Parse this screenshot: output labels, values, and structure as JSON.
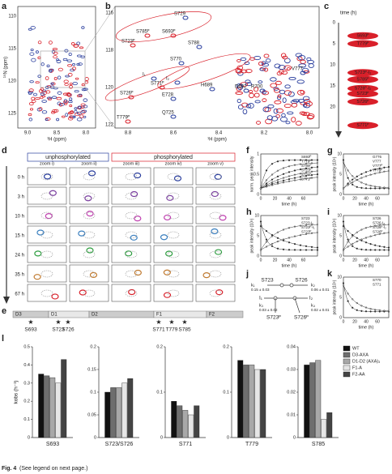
{
  "panel_labels": [
    "a",
    "b",
    "c",
    "d",
    "e",
    "f",
    "g",
    "h",
    "i",
    "j",
    "k",
    "l"
  ],
  "a": {
    "yticks": [
      "110",
      "115",
      "120",
      "125"
    ],
    "xticks": [
      "9.0",
      "8.5",
      "8.0"
    ],
    "ylabel": "¹⁵N (ppm)",
    "xlabel": "¹H (ppm)"
  },
  "b": {
    "yticks": [
      "116",
      "118",
      "120",
      "122"
    ],
    "xticks": [
      "8.8",
      "8.6",
      "8.4",
      "8.2",
      "8.0"
    ],
    "xlabel": "¹H (ppm)",
    "peaks": [
      "S729",
      "S785ᴾ",
      "S693ᴾ",
      "S723ᴾ",
      "S788",
      "S770",
      "H689",
      "D692",
      "R700",
      "V777",
      "E728",
      "S771ᴾ",
      "S726ᴾ",
      "Q725",
      "T779ᴾ",
      "I₁",
      "I₂"
    ]
  },
  "c": {
    "label": "time (h)",
    "ticks": [
      "0",
      "5",
      "10",
      "15",
      "20"
    ],
    "events": [
      "S693ᴾ",
      "T779ᴾ",
      "S723ᴾ-I₁",
      "S785ᴾ",
      "S726ᴾ-I₂",
      "S723ᴾ",
      "S726ᴾ",
      "S771ᴾ"
    ]
  },
  "d": {
    "groups": [
      "unphosphorylated",
      "phosphorylated"
    ],
    "zooms": [
      "zoom i)",
      "zoom ii)",
      "zoom iii)",
      "zoom iv)",
      "zoom v)"
    ],
    "times": [
      "0 h",
      "3 h",
      "10 h",
      "15 h",
      "24 h",
      "35 h",
      "67 h"
    ]
  },
  "e": {
    "domains": [
      "D3",
      "D1",
      "D2",
      "F1",
      "F2"
    ],
    "sites": [
      "S693",
      "S723",
      "S726",
      "S771",
      "T779",
      "S785"
    ]
  },
  "f": {
    "ylabel": "norm. peak intensity",
    "yticks": [
      "0",
      "0.5",
      "1"
    ],
    "xticks": [
      "0",
      "20",
      "40",
      "60"
    ],
    "xlabel": "time (h)",
    "legend": [
      "S693ᴾ",
      "T779ᴾ",
      "S785ᴾ",
      "S723ᴾ",
      "S726ᴾ",
      "S771ᴾ"
    ]
  },
  "g": {
    "ylabel": "peak intensity (10⁵)",
    "yticks": [
      "0",
      "5",
      "10"
    ],
    "xticks": [
      "0",
      "20",
      "40",
      "60"
    ],
    "xlabel": "time (h)",
    "legend": [
      "G776",
      "V777",
      "V777ᴾ",
      "T779ᴾ"
    ]
  },
  "h": {
    "ylabel": "peak intensity (10⁵)",
    "yticks": [
      "0",
      "5",
      "10"
    ],
    "xticks": [
      "0",
      "20",
      "40",
      "60"
    ],
    "xlabel": "time (h)",
    "legend": [
      "S723",
      "S723-I₁",
      "S723ᴾ-I₁",
      "S723ᴾ"
    ]
  },
  "i": {
    "ylabel": "peak intensity (10⁵)",
    "yticks": [
      "0",
      "5",
      "10"
    ],
    "xticks": [
      "0",
      "20",
      "40",
      "60"
    ],
    "xlabel": "time (h)",
    "legend": [
      "S726",
      "S726-I₂",
      "S726ᴾ-I₂",
      "S726ᴾ"
    ]
  },
  "j": {
    "states": [
      "S723",
      "S726",
      "I₁",
      "I₂",
      "S723ᴾ",
      "S726ᴾ"
    ],
    "rates": [
      "k₁",
      "k₂",
      "k₃",
      "k₄"
    ],
    "rate_values": [
      "0.15 ± 0.03",
      "0.06 ± 0.01",
      "0.03 ± 0.02",
      "0.02 ± 0.01"
    ]
  },
  "k": {
    "ylabel": "peak intensity (10⁵)",
    "yticks": [
      "0",
      "5",
      "10"
    ],
    "xticks": [
      "0",
      "20",
      "40",
      "60"
    ],
    "xlabel": "time (h)",
    "legend": [
      "S770",
      "S771"
    ]
  },
  "chart_data": [
    {
      "type": "bar",
      "ylabel": "kobs (h⁻¹)",
      "categories": [
        "S693"
      ],
      "ylim": [
        0,
        0.5
      ],
      "yticks": [
        0,
        0.1,
        0.2,
        0.3,
        0.4,
        0.5
      ],
      "series": [
        {
          "color": "#111111",
          "values": [
            0.35
          ]
        },
        {
          "color": "#6e6e6e",
          "values": [
            0.34
          ]
        },
        {
          "color": "#a8a8a8",
          "values": [
            0.33
          ]
        },
        {
          "color": "#e6e6e6",
          "values": [
            0.3
          ]
        },
        {
          "color": "#444444",
          "values": [
            0.43
          ]
        }
      ]
    },
    {
      "type": "bar",
      "categories": [
        "S723/S726"
      ],
      "ylim": [
        0,
        0.2
      ],
      "yticks": [
        0,
        0.05,
        0.1,
        0.15,
        0.2
      ],
      "series": [
        {
          "color": "#111111",
          "values": [
            0.1
          ]
        },
        {
          "color": "#6e6e6e",
          "values": [
            0.11
          ]
        },
        {
          "color": "#a8a8a8",
          "values": [
            0.11
          ]
        },
        {
          "color": "#e6e6e6",
          "values": [
            0.12
          ]
        },
        {
          "color": "#444444",
          "values": [
            0.13
          ]
        }
      ]
    },
    {
      "type": "bar",
      "categories": [
        "S771"
      ],
      "ylim": [
        0,
        0.2
      ],
      "yticks": [
        0,
        0.1,
        0.2
      ],
      "series": [
        {
          "color": "#111111",
          "values": [
            0.08
          ]
        },
        {
          "color": "#6e6e6e",
          "values": [
            0.07
          ]
        },
        {
          "color": "#a8a8a8",
          "values": [
            0.06
          ]
        },
        {
          "color": "#e6e6e6",
          "values": [
            0.05
          ]
        },
        {
          "color": "#444444",
          "values": [
            0.07
          ]
        }
      ]
    },
    {
      "type": "bar",
      "categories": [
        "T779"
      ],
      "ylim": [
        0,
        0.2
      ],
      "yticks": [
        0,
        0.1,
        0.2
      ],
      "series": [
        {
          "color": "#111111",
          "values": [
            0.17
          ]
        },
        {
          "color": "#6e6e6e",
          "values": [
            0.16
          ]
        },
        {
          "color": "#a8a8a8",
          "values": [
            0.16
          ]
        },
        {
          "color": "#e6e6e6",
          "values": [
            0.15
          ]
        },
        {
          "color": "#444444",
          "values": [
            0.15
          ]
        }
      ]
    },
    {
      "type": "bar",
      "categories": [
        "S785"
      ],
      "ylim": [
        0,
        0.04
      ],
      "yticks": [
        0,
        0.01,
        0.02,
        0.03,
        0.04
      ],
      "series": [
        {
          "name": "WT",
          "color": "#111111",
          "values": [
            0.032
          ]
        },
        {
          "name": "D3-AXA",
          "color": "#6e6e6e",
          "values": [
            0.033
          ]
        },
        {
          "name": "D1-D2 (AXA)₃",
          "color": "#a8a8a8",
          "values": [
            0.034
          ]
        },
        {
          "name": "F1-A",
          "color": "#e6e6e6",
          "values": [
            0.008
          ]
        },
        {
          "name": "F2-AA",
          "color": "#444444",
          "values": [
            0.011
          ]
        }
      ]
    }
  ],
  "caption": {
    "label": "Fig. 4",
    "text": "(See legend on next page.)"
  }
}
